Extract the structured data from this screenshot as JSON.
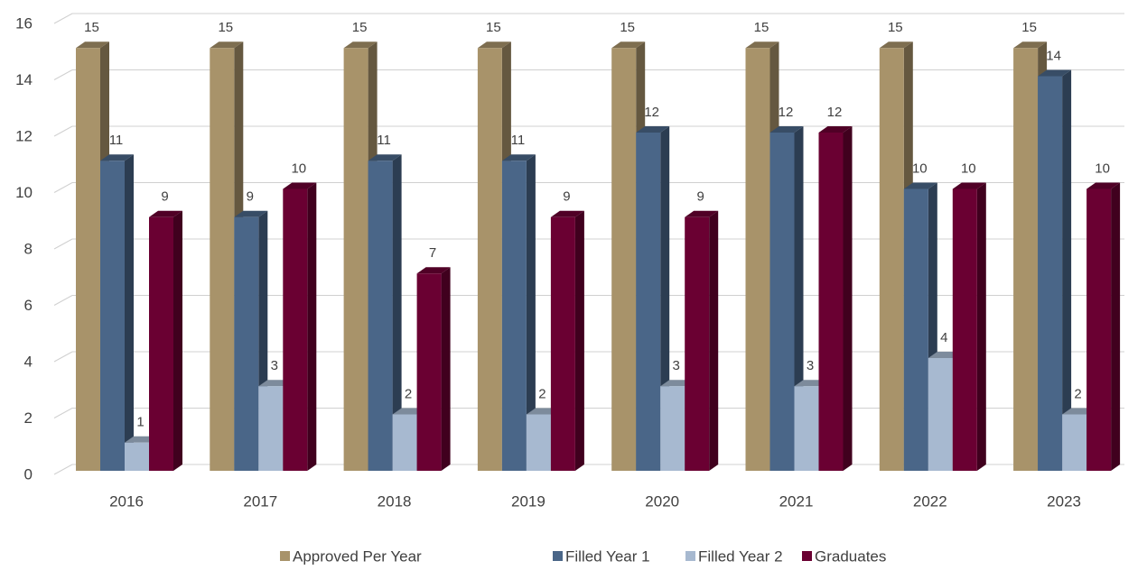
{
  "chart_data": {
    "type": "bar3d",
    "categories": [
      "2016",
      "2017",
      "2018",
      "2019",
      "2020",
      "2021",
      "2022",
      "2023"
    ],
    "series": [
      {
        "name": "Approved Per Year",
        "color": "#a8936a",
        "values": [
          15,
          15,
          15,
          15,
          15,
          15,
          15,
          15
        ]
      },
      {
        "name": "Filled Year 1",
        "color": "#4a6688",
        "values": [
          11,
          9,
          11,
          11,
          12,
          12,
          10,
          14
        ]
      },
      {
        "name": "Filled Year 2",
        "color": "#a7b9d0",
        "values": [
          1,
          3,
          2,
          2,
          3,
          3,
          4,
          2
        ]
      },
      {
        "name": "Graduates",
        "color": "#6a0032",
        "values": [
          9,
          10,
          7,
          9,
          9,
          12,
          10,
          10
        ]
      }
    ],
    "ylim": [
      0,
      16
    ],
    "yticks": [
      0,
      2,
      4,
      6,
      8,
      10,
      12,
      14,
      16
    ],
    "grid": true
  }
}
